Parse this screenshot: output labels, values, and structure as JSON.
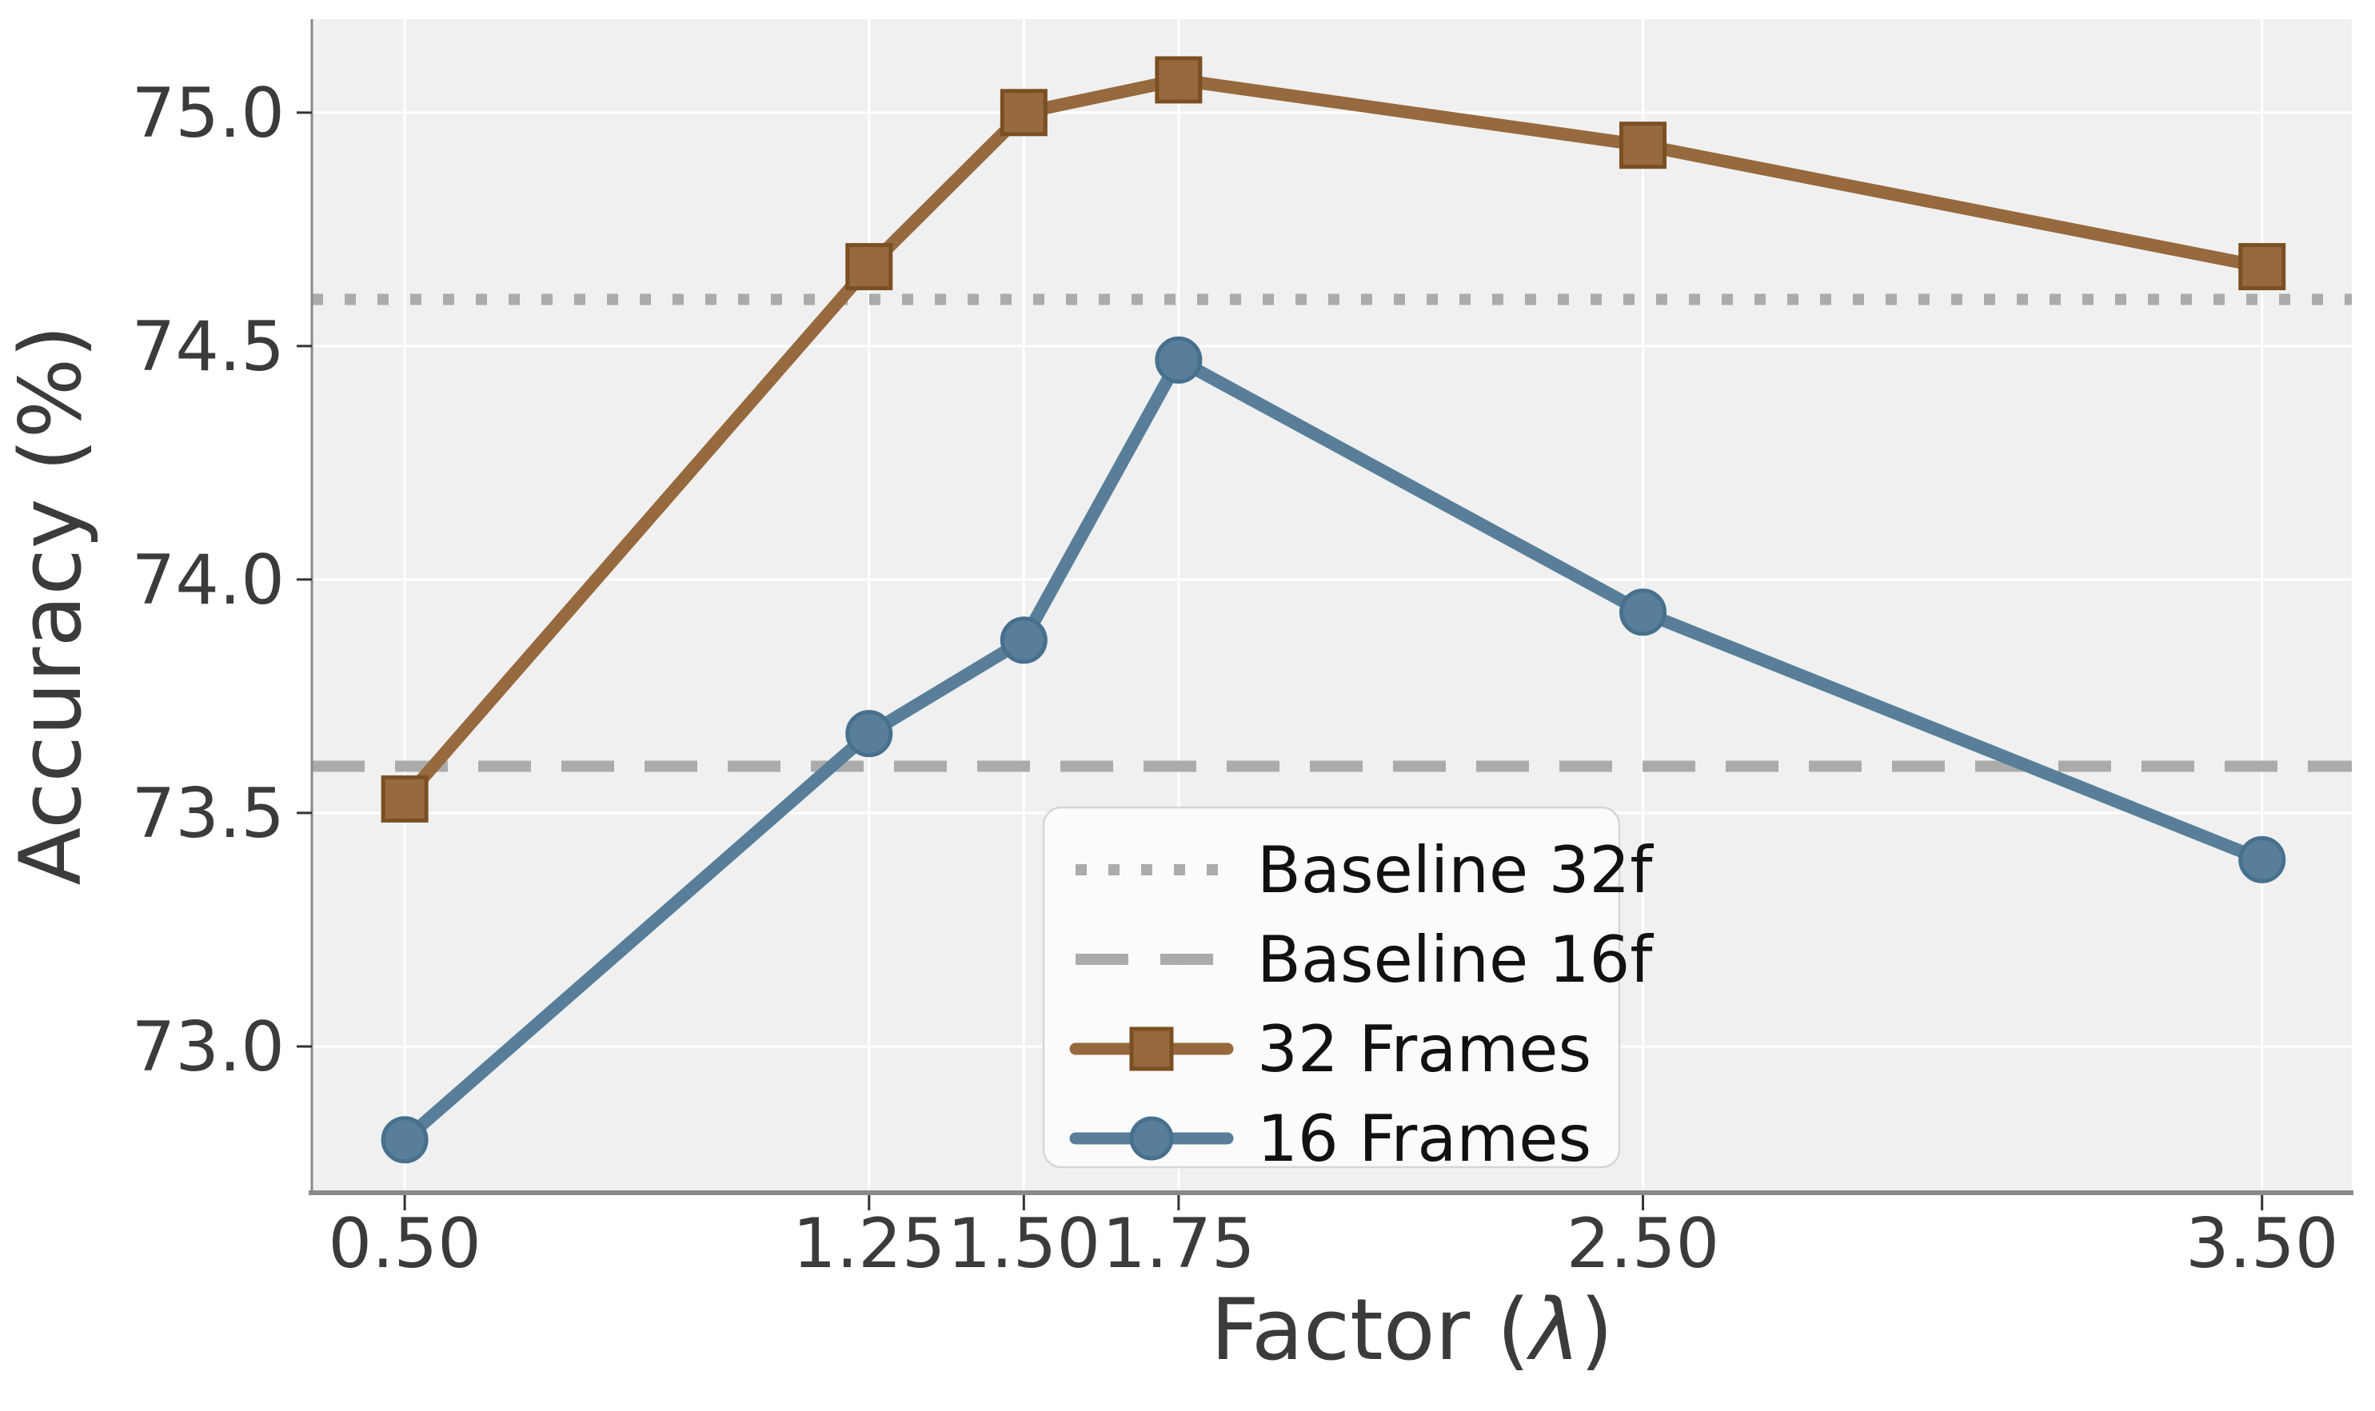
{
  "chart_data": {
    "type": "line",
    "title": "",
    "xlabel": "Factor (λ)",
    "ylabel": "Accuracy (%)",
    "x": [
      0.5,
      1.25,
      1.5,
      1.75,
      2.5,
      3.5
    ],
    "x_tick_labels": [
      "0.50",
      "1.25",
      "1.50",
      "1.75",
      "2.50",
      "3.50"
    ],
    "y_ticks": [
      73.0,
      73.5,
      74.0,
      74.5,
      75.0
    ],
    "y_tick_labels": [
      "73.0",
      "73.5",
      "74.0",
      "74.5",
      "75.0"
    ],
    "xlim": [
      0.35,
      3.645
    ],
    "ylim": [
      72.69,
      75.2
    ],
    "grid": true,
    "legend_position": "lower center-right inside plot",
    "series": [
      {
        "name": "32 Frames",
        "marker": "square",
        "color": "#96693E",
        "edge_color": "#7A4F22",
        "values": [
          73.53,
          74.67,
          75.0,
          75.07,
          74.93,
          74.67
        ]
      },
      {
        "name": "16 Frames",
        "marker": "circle",
        "color": "#587E99",
        "edge_color": "#46708D",
        "values": [
          72.8,
          73.67,
          73.87,
          74.47,
          73.93,
          73.4
        ]
      }
    ],
    "baselines": [
      {
        "name": "Baseline 32f",
        "value": 74.6,
        "style": "dotted",
        "color": "#ABABAB"
      },
      {
        "name": "Baseline 16f",
        "value": 73.6,
        "style": "dashed",
        "color": "#ABABAB"
      }
    ],
    "legend_entries": [
      {
        "label": "Baseline 32f",
        "swatch": "dotted-line"
      },
      {
        "label": "Baseline 16f",
        "swatch": "dashed-line"
      },
      {
        "label": "32 Frames",
        "swatch": "line-square-marker"
      },
      {
        "label": "16 Frames",
        "swatch": "line-circle-marker"
      }
    ]
  },
  "colors": {
    "figure_background": "#FFFFFF",
    "axes_background": "#F0F0F0",
    "gridline": "#FFFFFF",
    "spine": "#8A8A8A",
    "tick_mark": "#333333",
    "tick_label": "#3B3B3B",
    "axis_label": "#3B3B3B",
    "legend_background": "#FCFCFC",
    "legend_border": "#D6D6D6",
    "legend_text": "#111111"
  }
}
